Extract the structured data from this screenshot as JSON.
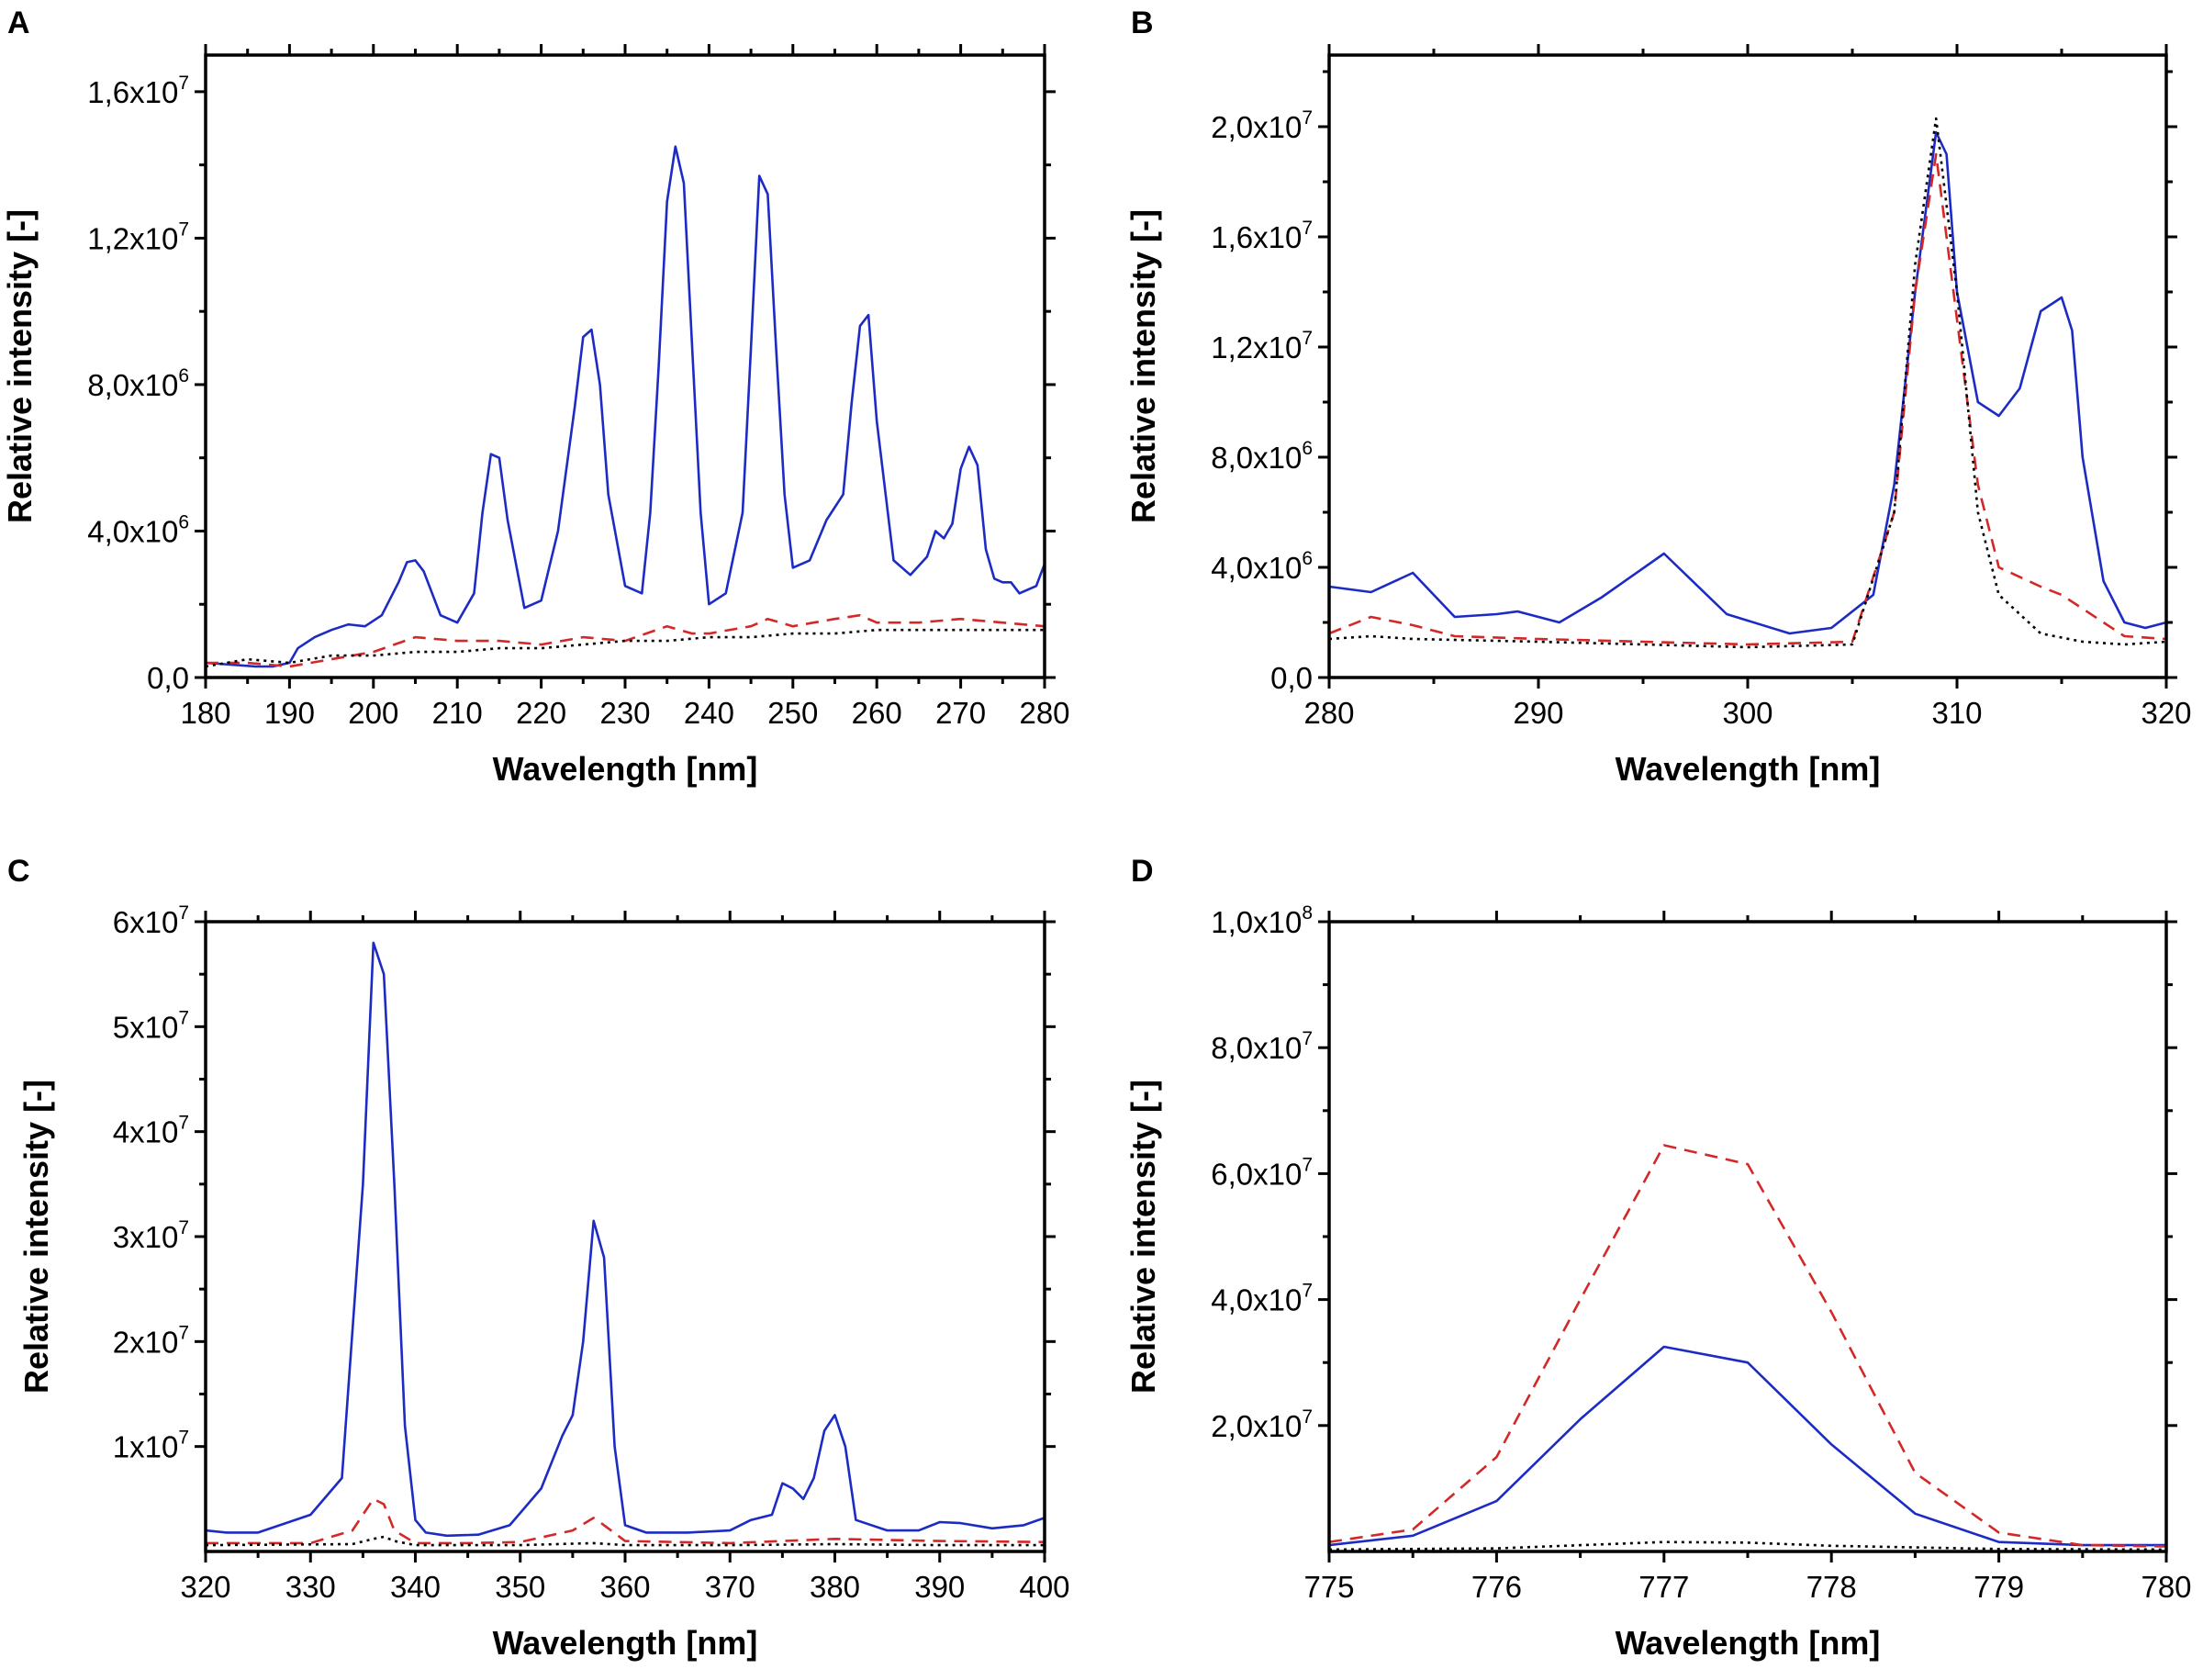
{
  "figure": {
    "colors": {
      "blue": "#1c2bc4",
      "red": "#d42828",
      "black": "#000000"
    }
  },
  "chart_data": [
    {
      "id": "A",
      "type": "line",
      "panel_label": "A",
      "xlabel": "Wavelength [nm]",
      "ylabel": "Relative intensity [-]",
      "xlim": [
        180,
        280
      ],
      "ylim": [
        0,
        17000000
      ],
      "xticks": [
        180,
        190,
        200,
        210,
        220,
        230,
        240,
        250,
        260,
        270,
        280
      ],
      "xtick_labels": [
        "180",
        "190",
        "200",
        "210",
        "220",
        "230",
        "240",
        "250",
        "260",
        "270",
        "280"
      ],
      "yticks": [
        {
          "value": 0,
          "mant": "0,0",
          "exp": ""
        },
        {
          "value": 4000000,
          "mant": "4,0x10",
          "exp": "6"
        },
        {
          "value": 8000000,
          "mant": "8,0x10",
          "exp": "6"
        },
        {
          "value": 12000000,
          "mant": "1,2x10",
          "exp": "7"
        },
        {
          "value": 16000000,
          "mant": "1,6x10",
          "exp": "7"
        }
      ],
      "series": [
        {
          "name": "blue-solid",
          "color": "#1c2bc4",
          "dash": "",
          "x": [
            180,
            183,
            186,
            188,
            190,
            191,
            193,
            195,
            197,
            199,
            201,
            203,
            204,
            205,
            206,
            208,
            210,
            212,
            213,
            214,
            215,
            216,
            218,
            220,
            222,
            224,
            225,
            226,
            227,
            228,
            230,
            232,
            233,
            234,
            235,
            236,
            237,
            238,
            239,
            240,
            242,
            244,
            245,
            246,
            247,
            248,
            249,
            250,
            252,
            254,
            256,
            257,
            258,
            259,
            260,
            262,
            264,
            266,
            267,
            268,
            269,
            270,
            271,
            272,
            273,
            274,
            275,
            276,
            277,
            278,
            279,
            280
          ],
          "y": [
            400000,
            350000,
            300000,
            300000,
            400000,
            800000,
            1100000,
            1300000,
            1450000,
            1400000,
            1700000,
            2600000,
            3150000,
            3200000,
            2900000,
            1700000,
            1500000,
            2300000,
            4500000,
            6100000,
            6000000,
            4300000,
            1900000,
            2100000,
            4000000,
            7400000,
            9300000,
            9500000,
            8000000,
            5000000,
            2500000,
            2300000,
            4500000,
            8500000,
            13000000,
            14500000,
            13500000,
            9000000,
            4500000,
            2000000,
            2300000,
            4500000,
            9000000,
            13700000,
            13200000,
            9000000,
            5000000,
            3000000,
            3200000,
            4300000,
            5000000,
            7500000,
            9600000,
            9900000,
            7000000,
            3200000,
            2800000,
            3300000,
            4000000,
            3800000,
            4200000,
            5700000,
            6300000,
            5800000,
            3500000,
            2700000,
            2600000,
            2600000,
            2300000,
            2400000,
            2500000,
            3100000
          ]
        },
        {
          "name": "red-dashed",
          "color": "#d42828",
          "dash": "14,9",
          "x": [
            180,
            185,
            190,
            195,
            200,
            205,
            210,
            215,
            220,
            225,
            230,
            235,
            238,
            240,
            245,
            247,
            250,
            255,
            258,
            260,
            265,
            270,
            275,
            280
          ],
          "y": [
            400000,
            400000,
            300000,
            500000,
            700000,
            1100000,
            1000000,
            1000000,
            900000,
            1100000,
            1000000,
            1400000,
            1200000,
            1200000,
            1400000,
            1600000,
            1400000,
            1600000,
            1700000,
            1500000,
            1500000,
            1600000,
            1500000,
            1400000
          ]
        },
        {
          "name": "black-dotted",
          "color": "#000000",
          "dash": "3,5",
          "x": [
            180,
            185,
            190,
            195,
            200,
            205,
            210,
            215,
            220,
            225,
            230,
            235,
            240,
            245,
            250,
            255,
            260,
            265,
            270,
            275,
            280
          ],
          "y": [
            300000,
            500000,
            400000,
            600000,
            600000,
            700000,
            700000,
            800000,
            800000,
            900000,
            1000000,
            1000000,
            1100000,
            1100000,
            1200000,
            1200000,
            1300000,
            1300000,
            1300000,
            1300000,
            1300000
          ]
        }
      ]
    },
    {
      "id": "B",
      "type": "line",
      "panel_label": "B",
      "xlabel": "Wavelength [nm]",
      "ylabel": "Relative intensity [-]",
      "xlim": [
        280,
        320
      ],
      "ylim": [
        0,
        22600000
      ],
      "xticks": [
        280,
        290,
        300,
        310,
        320
      ],
      "xtick_labels": [
        "280",
        "290",
        "300",
        "310",
        "320"
      ],
      "yticks": [
        {
          "value": 0,
          "mant": "0,0",
          "exp": ""
        },
        {
          "value": 4000000,
          "mant": "4,0x10",
          "exp": "6"
        },
        {
          "value": 8000000,
          "mant": "8,0x10",
          "exp": "6"
        },
        {
          "value": 12000000,
          "mant": "1,2x10",
          "exp": "7"
        },
        {
          "value": 16000000,
          "mant": "1,6x10",
          "exp": "7"
        },
        {
          "value": 20000000,
          "mant": "2,0x10",
          "exp": "7"
        }
      ],
      "series": [
        {
          "name": "blue-solid",
          "color": "#1c2bc4",
          "dash": "",
          "x": [
            280,
            282,
            284,
            286,
            288,
            289,
            291,
            293,
            296,
            299,
            302,
            304,
            306,
            307,
            308,
            309,
            309.5,
            310,
            311,
            312,
            313,
            314,
            315,
            315.5,
            316,
            317,
            318,
            319,
            320
          ],
          "y": [
            3300000,
            3100000,
            3800000,
            2200000,
            2300000,
            2400000,
            2000000,
            2900000,
            4500000,
            2300000,
            1600000,
            1800000,
            3000000,
            7000000,
            14000000,
            19800000,
            19000000,
            14000000,
            10000000,
            9500000,
            10500000,
            13300000,
            13800000,
            12600000,
            8000000,
            3500000,
            2000000,
            1800000,
            2000000
          ]
        },
        {
          "name": "red-dashed",
          "color": "#d42828",
          "dash": "14,9",
          "x": [
            280,
            282,
            284,
            286,
            290,
            295,
            300,
            305,
            307,
            308,
            309,
            310,
            311,
            312,
            314,
            315,
            316,
            318,
            320
          ],
          "y": [
            1600000,
            2200000,
            1900000,
            1500000,
            1400000,
            1300000,
            1200000,
            1300000,
            6000000,
            14000000,
            19000000,
            13000000,
            7000000,
            4000000,
            3300000,
            3000000,
            2500000,
            1500000,
            1400000
          ]
        },
        {
          "name": "black-dotted",
          "color": "#000000",
          "dash": "3,5",
          "x": [
            280,
            282,
            284,
            290,
            295,
            300,
            305,
            307,
            308,
            309,
            310,
            311,
            312,
            314,
            316,
            318,
            320
          ],
          "y": [
            1400000,
            1500000,
            1400000,
            1300000,
            1200000,
            1100000,
            1200000,
            6000000,
            15000000,
            20300000,
            14000000,
            6000000,
            3000000,
            1600000,
            1300000,
            1200000,
            1300000
          ]
        }
      ]
    },
    {
      "id": "C",
      "type": "line",
      "panel_label": "C",
      "xlabel": "Wavelength [nm]",
      "ylabel": "Relative intensity [-]",
      "xlim": [
        320,
        400
      ],
      "ylim": [
        0,
        60000000
      ],
      "xticks": [
        320,
        330,
        340,
        350,
        360,
        370,
        380,
        390,
        400
      ],
      "xtick_labels": [
        "320",
        "330",
        "340",
        "350",
        "360",
        "370",
        "380",
        "390",
        "400"
      ],
      "yticks": [
        {
          "value": 10000000,
          "mant": "1x10",
          "exp": "7"
        },
        {
          "value": 20000000,
          "mant": "2x10",
          "exp": "7"
        },
        {
          "value": 30000000,
          "mant": "3x10",
          "exp": "7"
        },
        {
          "value": 40000000,
          "mant": "4x10",
          "exp": "7"
        },
        {
          "value": 50000000,
          "mant": "5x10",
          "exp": "7"
        },
        {
          "value": 60000000,
          "mant": "6x10",
          "exp": "7"
        }
      ],
      "series": [
        {
          "name": "blue-solid",
          "color": "#1c2bc4",
          "dash": "",
          "x": [
            320,
            322,
            325,
            330,
            333,
            335,
            336,
            337,
            338,
            339,
            340,
            341,
            343,
            346,
            349,
            352,
            354,
            355,
            356,
            357,
            358,
            359,
            360,
            362,
            366,
            370,
            372,
            374,
            375,
            376,
            377,
            378,
            379,
            380,
            381,
            382,
            385,
            388,
            390,
            392,
            395,
            398,
            400
          ],
          "y": [
            2000000,
            1800000,
            1800000,
            3500000,
            7000000,
            35000000,
            58000000,
            55000000,
            35000000,
            12000000,
            3000000,
            1800000,
            1500000,
            1600000,
            2500000,
            6000000,
            11000000,
            13000000,
            20000000,
            31500000,
            28000000,
            10000000,
            2500000,
            1800000,
            1800000,
            2000000,
            3000000,
            3500000,
            6500000,
            6000000,
            5000000,
            7000000,
            11500000,
            13000000,
            10000000,
            3000000,
            2000000,
            2000000,
            2800000,
            2700000,
            2200000,
            2500000,
            3200000
          ]
        },
        {
          "name": "red-dashed",
          "color": "#d42828",
          "dash": "14,9",
          "x": [
            320,
            330,
            334,
            336,
            337,
            338,
            340,
            345,
            350,
            355,
            357,
            358,
            360,
            370,
            380,
            390,
            400
          ],
          "y": [
            800000,
            800000,
            2000000,
            5000000,
            4500000,
            2000000,
            800000,
            800000,
            900000,
            2000000,
            3200000,
            2500000,
            1000000,
            800000,
            1200000,
            1000000,
            900000
          ]
        },
        {
          "name": "black-dotted",
          "color": "#000000",
          "dash": "3,5",
          "x": [
            320,
            334,
            336,
            337,
            338,
            340,
            350,
            357,
            360,
            370,
            380,
            390,
            400
          ],
          "y": [
            600000,
            700000,
            1200000,
            1400000,
            1000000,
            600000,
            600000,
            800000,
            600000,
            600000,
            700000,
            600000,
            600000
          ]
        }
      ]
    },
    {
      "id": "D",
      "type": "line",
      "panel_label": "D",
      "xlabel": "Wavelength [nm]",
      "ylabel": "Relative intensity [-]",
      "xlim": [
        775,
        780
      ],
      "ylim": [
        0,
        100000000
      ],
      "xticks": [
        775,
        776,
        777,
        778,
        779,
        780
      ],
      "xtick_labels": [
        "775",
        "776",
        "777",
        "778",
        "779",
        "780"
      ],
      "yticks": [
        {
          "value": 20000000,
          "mant": "2,0x10",
          "exp": "7"
        },
        {
          "value": 40000000,
          "mant": "4,0x10",
          "exp": "7"
        },
        {
          "value": 60000000,
          "mant": "6,0x10",
          "exp": "7"
        },
        {
          "value": 80000000,
          "mant": "8,0x10",
          "exp": "7"
        },
        {
          "value": 100000000,
          "mant": "1,0x10",
          "exp": "8"
        }
      ],
      "series": [
        {
          "name": "blue-solid",
          "color": "#1c2bc4",
          "dash": "",
          "x": [
            775,
            775.5,
            776,
            776.5,
            777,
            777.5,
            778,
            778.5,
            779,
            779.5,
            780
          ],
          "y": [
            1000000,
            2500000,
            8000000,
            21000000,
            32500000,
            30000000,
            17000000,
            6000000,
            1500000,
            1000000,
            1000000
          ]
        },
        {
          "name": "red-dashed",
          "color": "#d42828",
          "dash": "14,9",
          "x": [
            775,
            775.5,
            776,
            776.5,
            777,
            777.5,
            778,
            778.5,
            779,
            779.5,
            780
          ],
          "y": [
            1500000,
            3500000,
            15000000,
            40000000,
            64500000,
            61500000,
            38000000,
            12500000,
            3000000,
            1000000,
            800000
          ]
        },
        {
          "name": "black-dotted",
          "color": "#000000",
          "dash": "3,5",
          "x": [
            775,
            776,
            777,
            777.5,
            778,
            779,
            780
          ],
          "y": [
            300000,
            500000,
            1500000,
            1400000,
            900000,
            400000,
            300000
          ]
        }
      ]
    }
  ]
}
